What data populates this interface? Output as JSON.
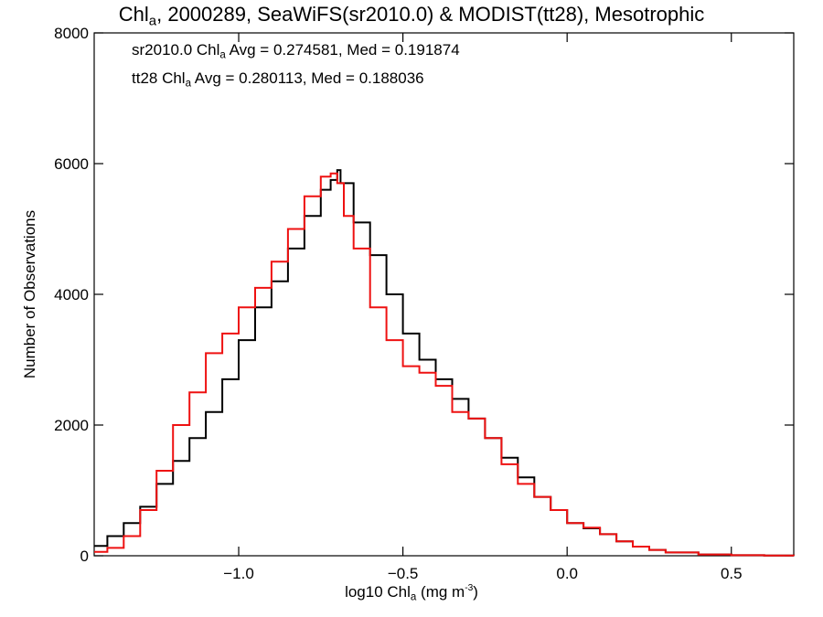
{
  "colors": {
    "series_sr2010": "#000000",
    "series_tt28": "#ee1111"
  },
  "chart_data": {
    "type": "line",
    "step": true,
    "title": {
      "pre": "Chl",
      "sub": "a",
      "post": ", 2000289, SeaWiFS(sr2010.0) & MODIST(tt28), Mesotrophic"
    },
    "xlabel": {
      "pre": "log10 Chl",
      "sub": "a",
      "mid": " (mg m",
      "sup": "-3",
      "post": ")"
    },
    "ylabel": "Number of Observations",
    "xlim": [
      -1.44,
      0.69
    ],
    "ylim": [
      0,
      8000
    ],
    "x_scale": "linear",
    "y_scale": "linear",
    "grid": false,
    "x_ticks": [
      -1.0,
      -0.5,
      0.0,
      0.5
    ],
    "x_tick_labels": [
      "−1.0",
      "−0.5",
      "0.0",
      "0.5"
    ],
    "y_ticks": [
      0,
      2000,
      4000,
      6000,
      8000
    ],
    "y_tick_labels": [
      "0",
      "2000",
      "4000",
      "6000",
      "8000"
    ],
    "annotations": [
      {
        "pre": "sr2010.0 Chl",
        "sub": "a",
        "post": " Avg = 0.274581, Med = 0.191874"
      },
      {
        "pre": "tt28 Chl",
        "sub": "a",
        "post": " Avg = 0.280113, Med = 0.188036"
      }
    ],
    "series": [
      {
        "color": "#000000",
        "x": [
          -1.44,
          -1.4,
          -1.35,
          -1.3,
          -1.25,
          -1.2,
          -1.15,
          -1.1,
          -1.05,
          -1.0,
          -0.95,
          -0.9,
          -0.85,
          -0.8,
          -0.75,
          -0.72,
          -0.7,
          -0.69,
          -0.65,
          -0.6,
          -0.55,
          -0.5,
          -0.45,
          -0.4,
          -0.35,
          -0.3,
          -0.25,
          -0.2,
          -0.15,
          -0.1,
          -0.05,
          0.0,
          0.05,
          0.1,
          0.15,
          0.2,
          0.25,
          0.3,
          0.4,
          0.5,
          0.6,
          0.69
        ],
        "y": [
          150,
          300,
          500,
          750,
          1100,
          1450,
          1800,
          2200,
          2700,
          3300,
          3800,
          4200,
          4700,
          5200,
          5600,
          5750,
          5900,
          5700,
          5100,
          4600,
          4000,
          3400,
          3000,
          2700,
          2400,
          2100,
          1800,
          1500,
          1200,
          900,
          700,
          500,
          420,
          330,
          220,
          140,
          90,
          50,
          20,
          8,
          3,
          0
        ]
      },
      {
        "color": "#ee1111",
        "x": [
          -1.44,
          -1.4,
          -1.35,
          -1.3,
          -1.25,
          -1.2,
          -1.15,
          -1.1,
          -1.05,
          -1.0,
          -0.95,
          -0.9,
          -0.85,
          -0.8,
          -0.75,
          -0.72,
          -0.7,
          -0.68,
          -0.65,
          -0.6,
          -0.55,
          -0.5,
          -0.45,
          -0.4,
          -0.35,
          -0.3,
          -0.25,
          -0.2,
          -0.15,
          -0.1,
          -0.05,
          0.0,
          0.05,
          0.1,
          0.15,
          0.2,
          0.25,
          0.3,
          0.4,
          0.5,
          0.6,
          0.69
        ],
        "y": [
          60,
          120,
          300,
          700,
          1300,
          2000,
          2500,
          3100,
          3400,
          3800,
          4100,
          4500,
          5000,
          5500,
          5800,
          5850,
          5700,
          5200,
          4700,
          3800,
          3300,
          2900,
          2800,
          2600,
          2200,
          2100,
          1800,
          1400,
          1100,
          900,
          700,
          500,
          430,
          330,
          220,
          140,
          90,
          50,
          20,
          8,
          3,
          0
        ]
      }
    ]
  }
}
